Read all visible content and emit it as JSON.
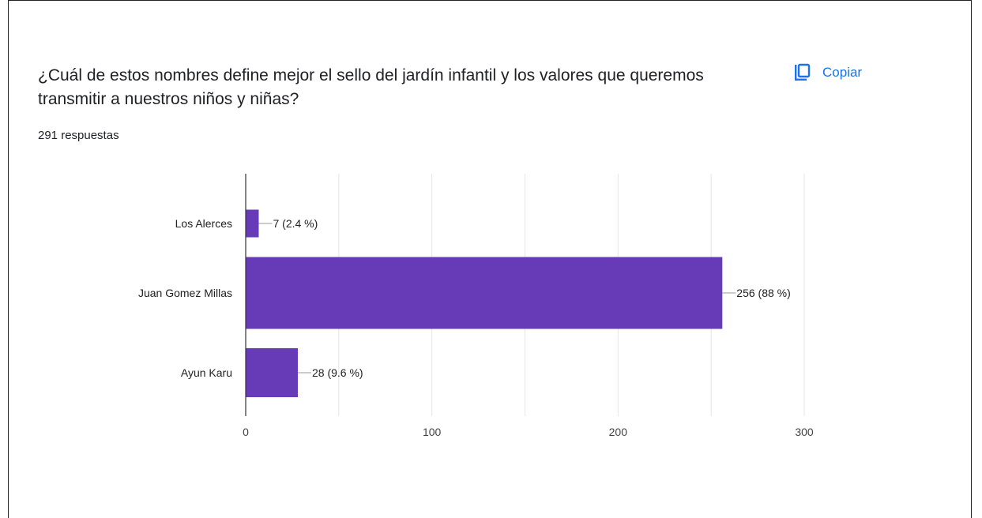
{
  "question": {
    "text": "¿Cuál de estos nombres define mejor el sello del jardín infantil y los valores que queremos transmitir a nuestros niños y niñas?",
    "response_count": "291 respuestas"
  },
  "copy_button": {
    "label": "Copiar",
    "icon": "copy-icon"
  },
  "colors": {
    "bar": "#673ab7",
    "accent": "#1a73e8",
    "grid": "#e6e6e6",
    "axis": "#333333"
  },
  "chart_data": {
    "type": "bar",
    "orientation": "horizontal",
    "categories": [
      "Los Alerces",
      "Juan Gomez Millas",
      "Ayun Karu"
    ],
    "values": [
      7,
      256,
      28
    ],
    "data_labels": [
      "7 (2.4 %)",
      "256 (88 %)",
      "28 (9.6 %)"
    ],
    "xlim": [
      0,
      300
    ],
    "x_ticks": [
      0,
      100,
      200,
      300
    ],
    "grid": true,
    "legend": "none"
  }
}
